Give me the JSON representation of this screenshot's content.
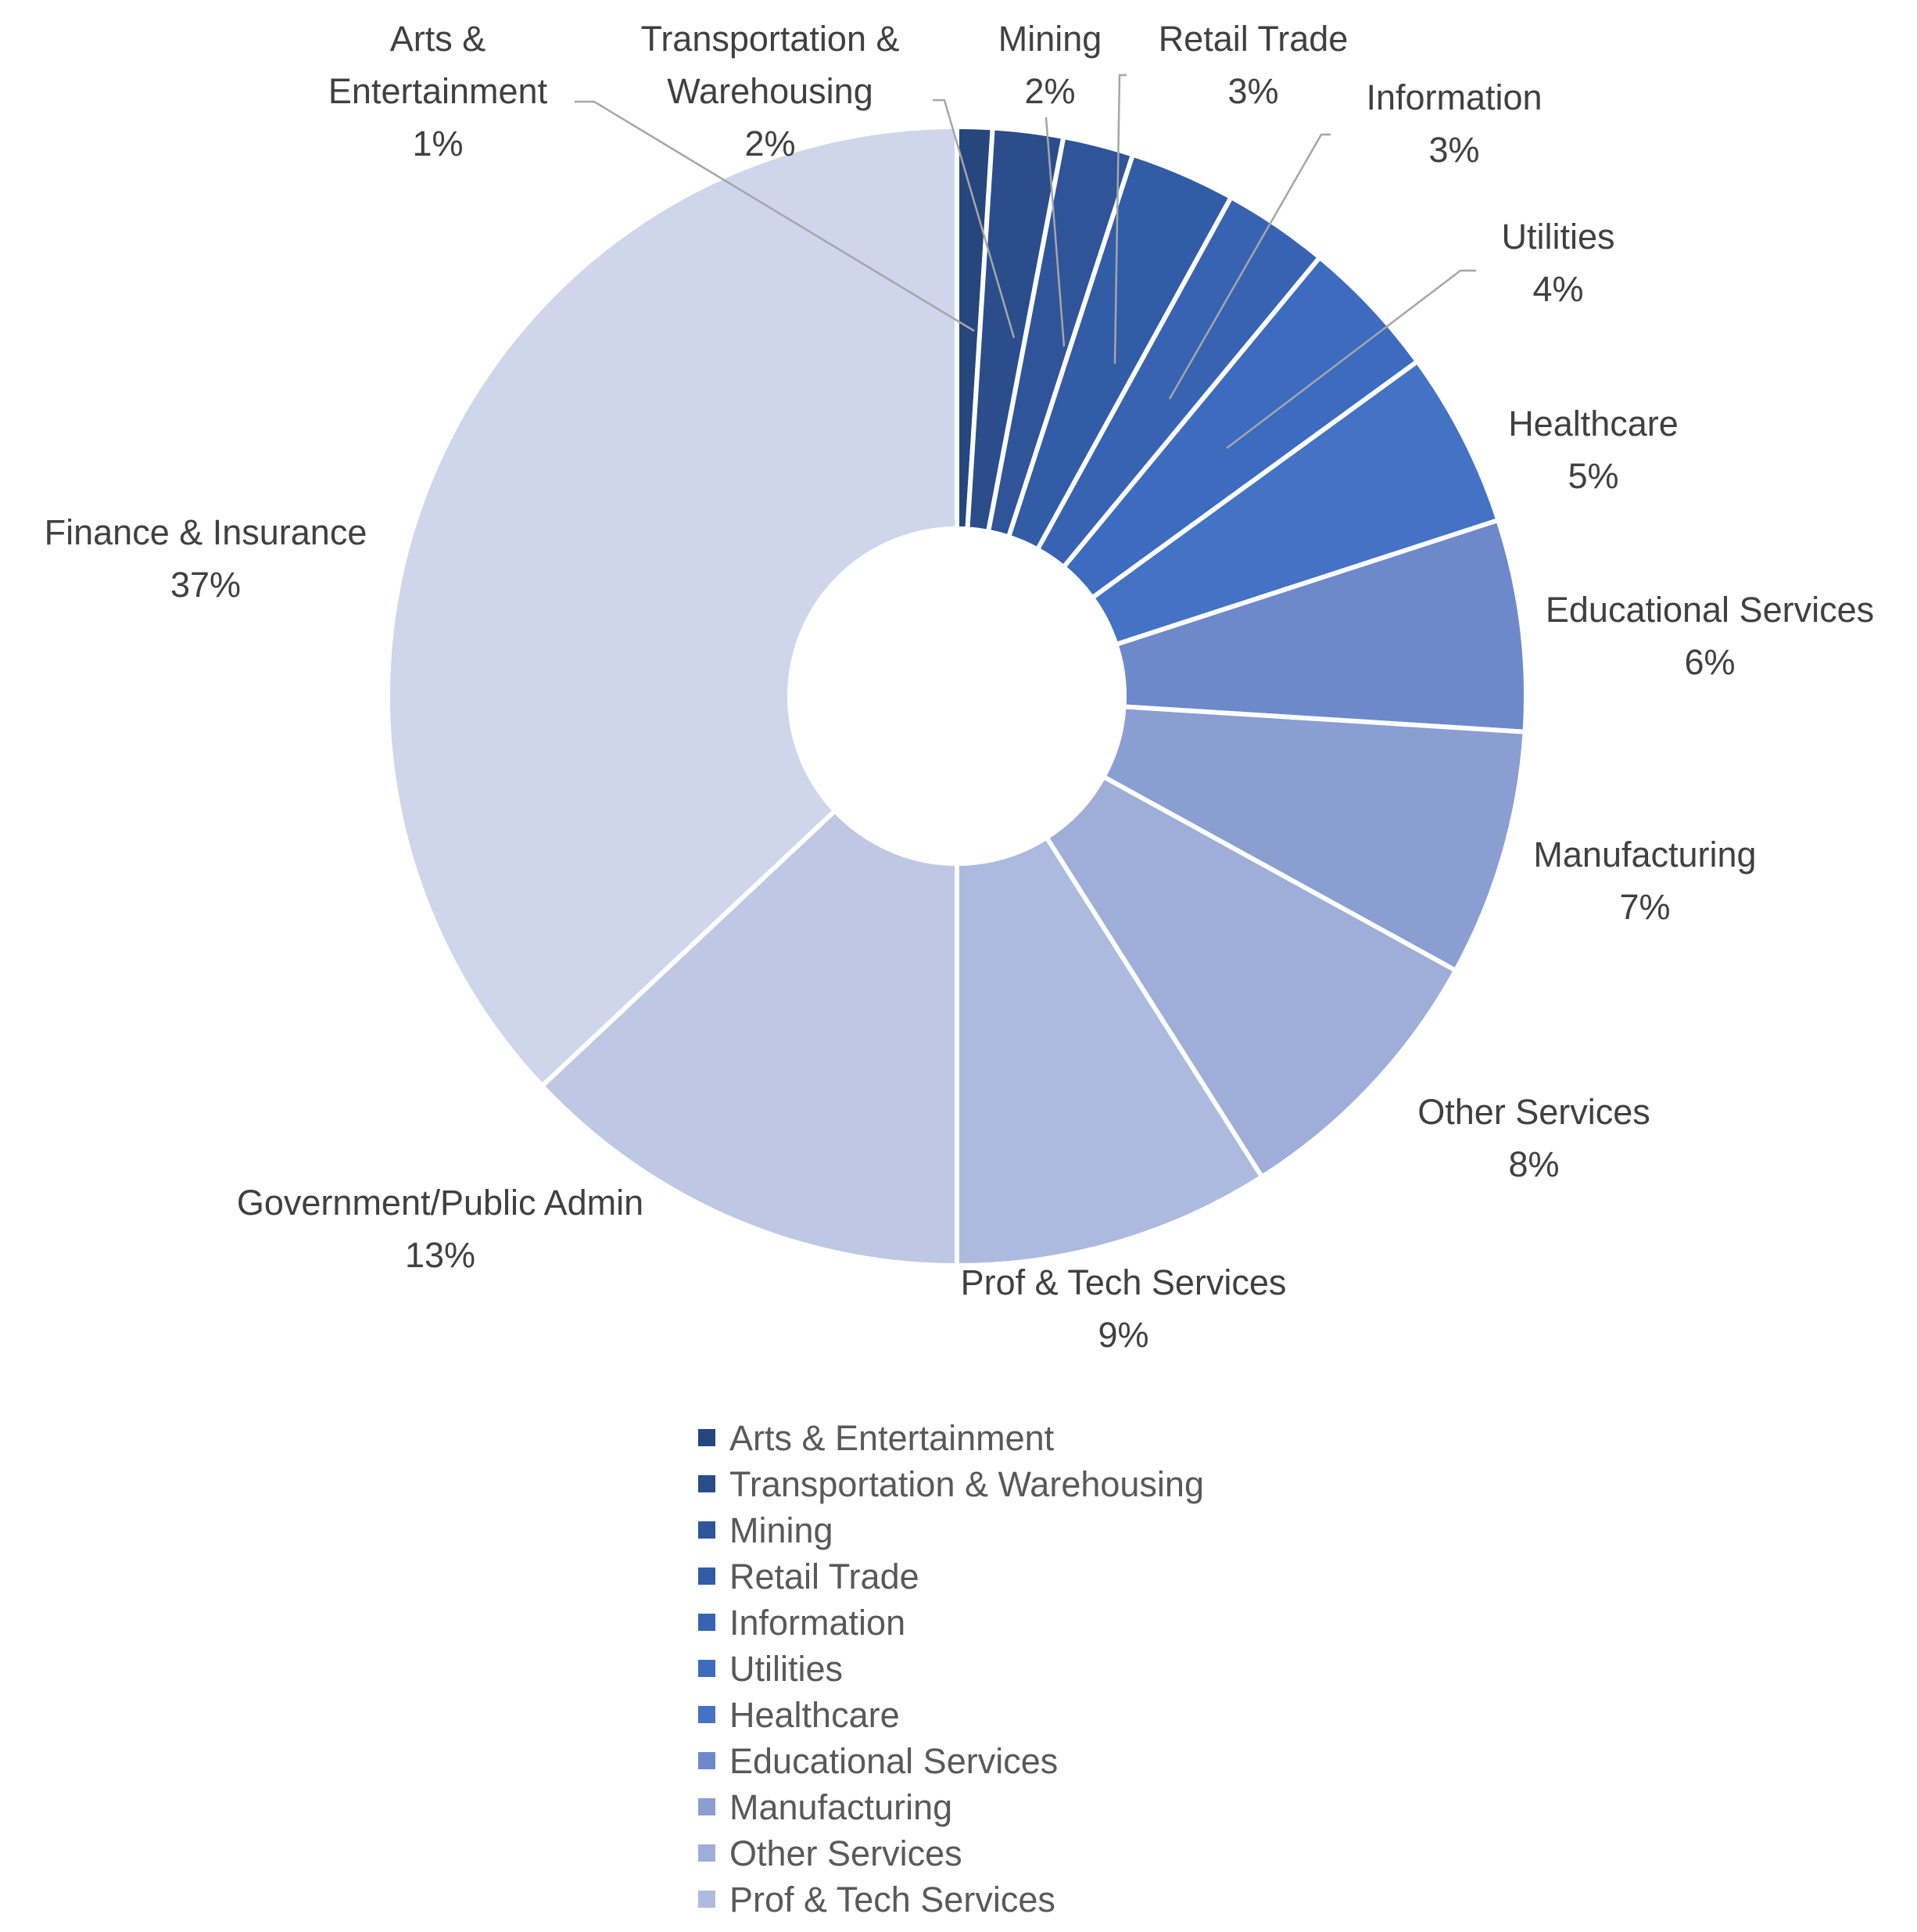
{
  "chart_data": {
    "type": "pie",
    "variant": "donut",
    "legend_position": "bottom",
    "slices": [
      {
        "label": "Arts & Entertainment",
        "value": 1,
        "value_text": "1%",
        "color": "#26467e"
      },
      {
        "label": "Transportation & Warehousing",
        "value": 2,
        "value_text": "2%",
        "color": "#2b4d8c"
      },
      {
        "label": "Mining",
        "value": 2,
        "value_text": "2%",
        "color": "#2f5499"
      },
      {
        "label": "Retail Trade",
        "value": 3,
        "value_text": "3%",
        "color": "#335ca6"
      },
      {
        "label": "Information",
        "value": 3,
        "value_text": "3%",
        "color": "#3863b3"
      },
      {
        "label": "Utilities",
        "value": 4,
        "value_text": "4%",
        "color": "#3c6bc0"
      },
      {
        "label": "Healthcare",
        "value": 5,
        "value_text": "5%",
        "color": "#4472c4"
      },
      {
        "label": "Educational Services",
        "value": 6,
        "value_text": "6%",
        "color": "#6e89cb"
      },
      {
        "label": "Manufacturing",
        "value": 7,
        "value_text": "7%",
        "color": "#8a9ed2"
      },
      {
        "label": "Other Services",
        "value": 8,
        "value_text": "8%",
        "color": "#9eaed8"
      },
      {
        "label": "Prof & Tech Services",
        "value": 9,
        "value_text": "9%",
        "color": "#adbadf"
      },
      {
        "label": "Government/Public Admin",
        "value": 13,
        "value_text": "13%",
        "color": "#bec8e4"
      },
      {
        "label": "Finance & Insurance",
        "value": 37,
        "value_text": "37%",
        "color": "#cfd5ea"
      }
    ],
    "legend_entries": [
      "Arts & Entertainment",
      "Transportation & Warehousing",
      "Mining",
      "Retail Trade",
      "Information",
      "Utilities",
      "Healthcare",
      "Educational Services",
      "Manufacturing",
      "Other Services",
      "Prof & Tech Services"
    ]
  }
}
